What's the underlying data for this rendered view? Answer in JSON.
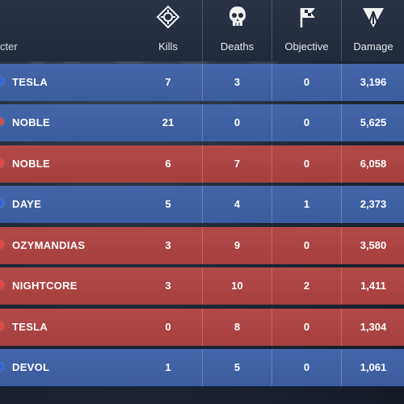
{
  "header": {
    "character_label": "cter",
    "columns": [
      {
        "key": "kills",
        "label": "Kills",
        "icon": "crosshair-icon"
      },
      {
        "key": "deaths",
        "label": "Deaths",
        "icon": "skull-icon"
      },
      {
        "key": "objective",
        "label": "Objective",
        "icon": "flag-icon"
      },
      {
        "key": "damage",
        "label": "Damage",
        "icon": "damage-burst-icon"
      }
    ]
  },
  "colors": {
    "blue_team": "#4266a9",
    "red_team": "#b14947"
  },
  "rows": [
    {
      "team": "blue",
      "name": "TESLA",
      "kills": "7",
      "deaths": "3",
      "objective": "0",
      "damage": "3,196"
    },
    {
      "team": "blue",
      "name": "NOBLE",
      "kills": "21",
      "deaths": "0",
      "objective": "0",
      "damage": "5,625"
    },
    {
      "team": "red",
      "name": "NOBLE",
      "kills": "6",
      "deaths": "7",
      "objective": "0",
      "damage": "6,058"
    },
    {
      "team": "blue",
      "name": "DAYE",
      "kills": "5",
      "deaths": "4",
      "objective": "1",
      "damage": "2,373"
    },
    {
      "team": "red",
      "name": "OZYMANDIAS",
      "kills": "3",
      "deaths": "9",
      "objective": "0",
      "damage": "3,580"
    },
    {
      "team": "red",
      "name": "NIGHTCORE",
      "kills": "3",
      "deaths": "10",
      "objective": "2",
      "damage": "1,411"
    },
    {
      "team": "red",
      "name": "TESLA",
      "kills": "0",
      "deaths": "8",
      "objective": "0",
      "damage": "1,304"
    },
    {
      "team": "blue",
      "name": "DEVOL",
      "kills": "1",
      "deaths": "5",
      "objective": "0",
      "damage": "1,061"
    }
  ]
}
